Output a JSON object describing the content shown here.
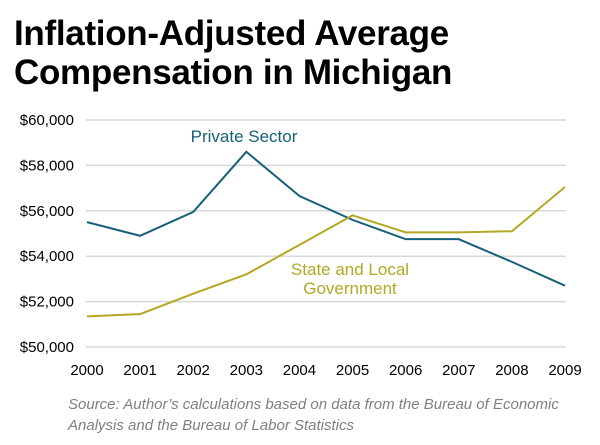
{
  "chart_data": {
    "type": "line",
    "title": "Inflation-Adjusted Average Compensation in Michigan",
    "xlabel": "",
    "ylabel": "",
    "x": [
      "2000",
      "2001",
      "2002",
      "2003",
      "2004",
      "2005",
      "2006",
      "2007",
      "2008",
      "2009"
    ],
    "ylim": [
      50000,
      60000
    ],
    "yticks": [
      50000,
      52000,
      54000,
      56000,
      58000,
      60000
    ],
    "ytick_labels": [
      "$50,000",
      "$52,000",
      "$54,000",
      "$56,000",
      "$58,000",
      "$60,000"
    ],
    "grid": true,
    "legend": "inline labels",
    "series": [
      {
        "name": "Private Sector",
        "label_lines": [
          "Private Sector"
        ],
        "color": "#17607a",
        "values": [
          55500,
          54900,
          55950,
          58600,
          56650,
          55600,
          54750,
          54750,
          53750,
          52700
        ]
      },
      {
        "name": "State and Local Government",
        "label_lines": [
          "State and Local",
          "Government"
        ],
        "color": "#b3a824",
        "values": [
          51350,
          51450,
          52350,
          53200,
          54500,
          55800,
          55050,
          55050,
          55100,
          57050
        ]
      }
    ],
    "source": "Source: Author’s calculations based on data from the Bureau of Economic Analysis and the Bureau of Labor Statistics"
  }
}
